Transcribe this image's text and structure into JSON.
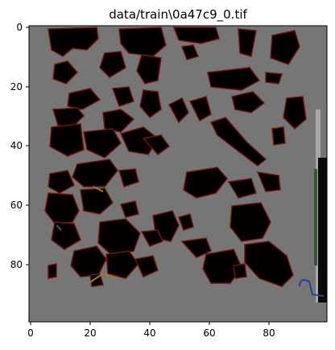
{
  "title": "data/train\\0a47c9_0.tif",
  "image": {
    "description_shown": "grayscale micrograph tile with dark irregular blobs on gray background",
    "background_color": "#767676",
    "blob_color": "#050000",
    "edge_color": "#7a1a14",
    "accent_colors": [
      "#2a3fa0",
      "#9a7a30",
      "#1e2a1e"
    ]
  },
  "axes": {
    "x_ticks": [
      "0",
      "20",
      "40",
      "60",
      "80"
    ],
    "y_ticks": [
      "0",
      "20",
      "40",
      "60",
      "80"
    ],
    "x_range": [
      -0.5,
      99.5
    ],
    "y_range": [
      99.5,
      -0.5
    ]
  }
}
